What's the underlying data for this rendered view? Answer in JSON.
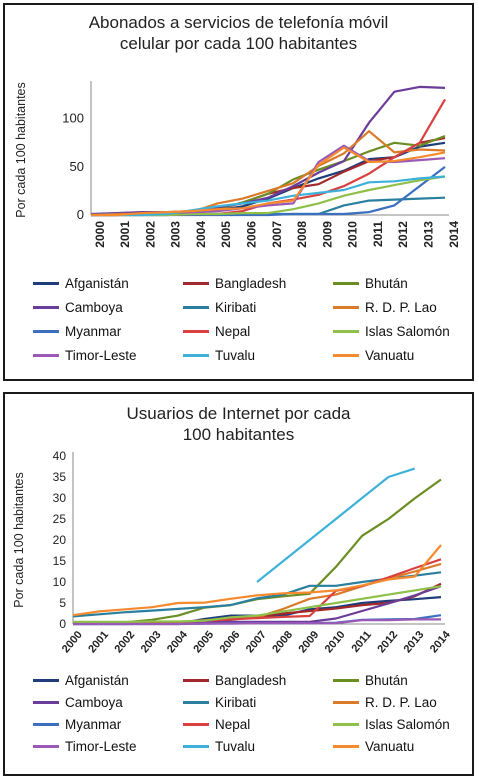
{
  "chart_data": [
    {
      "type": "line",
      "title_lines": [
        "Abonados a servicios de telefonía móvil",
        "celular por cada 100 habitantes"
      ],
      "ylabel": "Por cada 100 habitantes",
      "xlabel": "",
      "ylim": [
        0,
        135
      ],
      "yticks": [
        0,
        50,
        100
      ],
      "x": [
        "2000",
        "2001",
        "2002",
        "2003",
        "2004",
        "2005",
        "2006",
        "2007",
        "2008",
        "2009",
        "2010",
        "2011",
        "2012",
        "2013",
        "2014"
      ],
      "grid": false,
      "legend_position": "bottom",
      "series": [
        {
          "name": "Afganistán",
          "color": "#1f3d7a",
          "values": [
            0,
            0,
            1,
            3,
            2,
            5,
            9,
            17,
            28,
            38,
            46,
            58,
            60,
            71,
            75
          ]
        },
        {
          "name": "Bangladesh",
          "color": "#a3282b",
          "values": [
            0,
            0,
            1,
            1,
            2,
            6,
            13,
            22,
            28,
            32,
            45,
            56,
            60,
            75,
            80
          ]
        },
        {
          "name": "Bhután",
          "color": "#6b8e23",
          "values": [
            0,
            0,
            1,
            2,
            3,
            6,
            13,
            22,
            37,
            47,
            56,
            66,
            75,
            72,
            82
          ]
        },
        {
          "name": "Camboya",
          "color": "#6a3d9a",
          "values": [
            1,
            2,
            3,
            3,
            4,
            8,
            12,
            18,
            30,
            44,
            56,
            96,
            128,
            133,
            132
          ]
        },
        {
          "name": "Kiribati",
          "color": "#2a7f9e",
          "values": [
            0,
            1,
            1,
            1,
            1,
            1,
            1,
            1,
            1,
            1,
            10,
            15,
            16,
            17,
            18
          ]
        },
        {
          "name": "R. D. P. Lao",
          "color": "#d97b29",
          "values": [
            0,
            1,
            1,
            2,
            3,
            12,
            17,
            25,
            33,
            51,
            64,
            87,
            65,
            68,
            67
          ]
        },
        {
          "name": "Myanmar",
          "color": "#3b6fc0",
          "values": [
            0,
            0,
            0,
            0,
            0,
            0,
            0,
            0,
            1,
            1,
            1,
            3,
            10,
            30,
            50
          ]
        },
        {
          "name": "Nepal",
          "color": "#d94040",
          "values": [
            0,
            0,
            0,
            0,
            1,
            1,
            4,
            12,
            16,
            21,
            30,
            43,
            60,
            75,
            120
          ]
        },
        {
          "name": "Islas Salomón",
          "color": "#8fc04a",
          "values": [
            0,
            0,
            0,
            0,
            1,
            1,
            2,
            2,
            6,
            12,
            20,
            26,
            31,
            36,
            40
          ]
        },
        {
          "name": "Timor-Leste",
          "color": "#9b59b6",
          "values": [
            0,
            0,
            1,
            2,
            3,
            4,
            7,
            10,
            12,
            55,
            72,
            56,
            55,
            57,
            59
          ]
        },
        {
          "name": "Tuvalu",
          "color": "#3fb1d9",
          "values": [
            0,
            0,
            0,
            1,
            5,
            9,
            12,
            15,
            20,
            23,
            26,
            34,
            35,
            38,
            40
          ]
        },
        {
          "name": "Vanuatu",
          "color": "#f58a2e",
          "values": [
            0,
            0,
            2,
            3,
            4,
            6,
            7,
            12,
            15,
            52,
            70,
            55,
            56,
            60,
            65
          ]
        }
      ]
    },
    {
      "type": "line",
      "title_lines": [
        "Usuarios de Internet por cada",
        "100 habitantes"
      ],
      "ylabel": "Por cada 100 habitantes",
      "xlabel": "",
      "ylim": [
        0,
        40
      ],
      "yticks": [
        0,
        5,
        10,
        15,
        20,
        25,
        30,
        35,
        40
      ],
      "x": [
        "2000",
        "2001",
        "2002",
        "2003",
        "2004",
        "2005",
        "2006",
        "2007",
        "2008",
        "2009",
        "2010",
        "2011",
        "2012",
        "2013",
        "2014"
      ],
      "grid": false,
      "legend_position": "bottom",
      "series": [
        {
          "name": "Afganistán",
          "color": "#1f3d7a",
          "values": [
            0,
            0,
            0,
            0.1,
            0.1,
            1.2,
            2,
            2,
            2,
            3.5,
            4,
            5,
            5.5,
            5.9,
            6.4
          ]
        },
        {
          "name": "Bangladesh",
          "color": "#a3282b",
          "values": [
            0.1,
            0.1,
            0.1,
            0.2,
            0.2,
            0.2,
            1,
            1.8,
            2.5,
            3.1,
            3.7,
            4.5,
            5,
            6.6,
            9.6
          ]
        },
        {
          "name": "Bhután",
          "color": "#6b8e23",
          "values": [
            0.4,
            0.4,
            0.4,
            1,
            2,
            3.9,
            4.5,
            5.9,
            6.6,
            7.2,
            13.6,
            21,
            25,
            29.9,
            34.4
          ]
        },
        {
          "name": "Camboya",
          "color": "#6a3d9a",
          "values": [
            0,
            0.1,
            0.2,
            0.3,
            0.3,
            0.3,
            0.5,
            0.5,
            0.5,
            0.5,
            1.3,
            3.1,
            4.9,
            6.8,
            9
          ]
        },
        {
          "name": "Kiribati",
          "color": "#2a7f9e",
          "values": [
            1.8,
            2.3,
            2.8,
            3.2,
            3.6,
            4,
            4.5,
            6.1,
            7,
            9.1,
            9.1,
            10,
            10.8,
            11.5,
            12.3
          ]
        },
        {
          "name": "R. D. P. Lao",
          "color": "#d97b29",
          "values": [
            0.1,
            0.2,
            0.3,
            0.3,
            0.4,
            0.9,
            1.2,
            1.6,
            3.6,
            6,
            7,
            9,
            10.8,
            12.5,
            14.3
          ]
        },
        {
          "name": "Myanmar",
          "color": "#3b6fc0",
          "values": [
            0,
            0,
            0,
            0,
            0,
            0.1,
            0.2,
            0.2,
            0.2,
            0.2,
            0.3,
            1,
            1.1,
            1.2,
            2.1
          ]
        },
        {
          "name": "Nepal",
          "color": "#d94040",
          "values": [
            0.2,
            0.2,
            0.3,
            0.4,
            0.5,
            0.8,
            1.1,
            1.4,
            1.7,
            1.9,
            7.9,
            9,
            11.1,
            13.3,
            15.4
          ]
        },
        {
          "name": "Islas Salomón",
          "color": "#8fc04a",
          "values": [
            0.5,
            0.5,
            0.5,
            0.6,
            0.6,
            0.8,
            1.6,
            2,
            3,
            4,
            5,
            6,
            7,
            8,
            9
          ]
        },
        {
          "name": "Timor-Leste",
          "color": "#9b59b6",
          "values": [
            0,
            0,
            0,
            0,
            0,
            0.1,
            0.1,
            0.2,
            0.2,
            0.2,
            0.2,
            0.9,
            0.9,
            1.1,
            1.1
          ]
        },
        {
          "name": "Tuvalu",
          "color": "#3fb1d9",
          "values": [
            null,
            null,
            null,
            null,
            null,
            null,
            null,
            10,
            15,
            20,
            25,
            30,
            35,
            37,
            null
          ]
        },
        {
          "name": "Vanuatu",
          "color": "#f58a2e",
          "values": [
            2.1,
            3,
            3.5,
            4,
            5,
            5.1,
            6,
            6.8,
            7.3,
            7.5,
            8,
            9.2,
            10.6,
            11.3,
            18.8
          ]
        }
      ]
    }
  ]
}
